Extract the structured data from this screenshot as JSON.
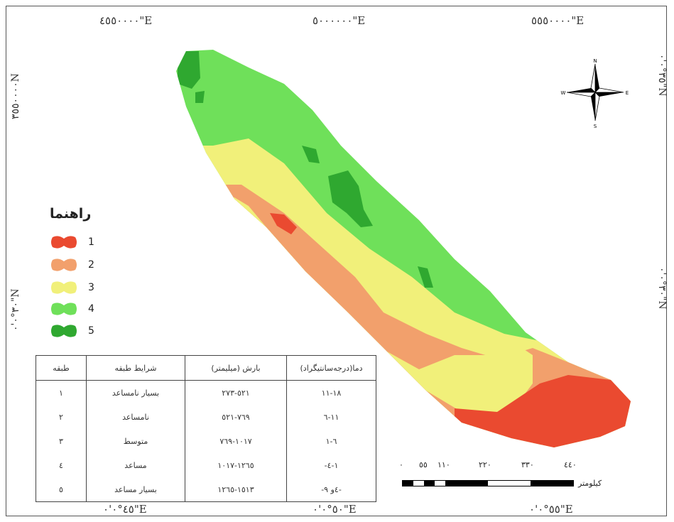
{
  "coords": {
    "top": [
      "٤٥٥٠٠٠٠\"E",
      "٥٠٠٠٠٠٠\"E",
      "٥٥٥٠٠٠٠\"E"
    ],
    "bottom": [
      "٤٥°٠'٠\"E",
      "٥٠°٠'٠\"E",
      "٥٥°٠'٠\"E"
    ],
    "left": [
      "٣٥٥٠٠٠٠N",
      "٣٠°٠'٠\"N"
    ],
    "right": [
      "٣٥°٠'٠\"N",
      "٣٠°٠'٠\"N"
    ]
  },
  "north_arrow": {
    "n": "N",
    "s": "S",
    "e": "E",
    "w": "W"
  },
  "legend": {
    "title": "راهنما",
    "items": [
      {
        "label": "1",
        "color": "#ea4a30"
      },
      {
        "label": "2",
        "color": "#f2a06c"
      },
      {
        "label": "3",
        "color": "#f1f07a"
      },
      {
        "label": "4",
        "color": "#6fe05a"
      },
      {
        "label": "5",
        "color": "#2fa830"
      }
    ]
  },
  "table": {
    "headers": [
      "طبقه",
      "شرایط طبقه",
      "بارش (میلیمتر)",
      "دما(درجه‌سانتیگراد)"
    ],
    "rows": [
      [
        "١",
        "بسیار نامساعد",
        "٥٢١-٢٧٣",
        "١٨-١١"
      ],
      [
        "٢",
        "نامساعد",
        "٧٦٩-٥٢١",
        "١١-٦"
      ],
      [
        "٣",
        "متوسط",
        "١٠١٧-٧٦٩",
        "٦-١"
      ],
      [
        "٤",
        "مساعد",
        "١٢٦٥-١٠١٧",
        "-١-٤"
      ],
      [
        "٥",
        "بسیار مساعد",
        "١٥١٣-١٢٦٥",
        "-٤و ٩-"
      ]
    ]
  },
  "scale": {
    "ticks": [
      "٠",
      "٥٥",
      "١١٠",
      "٢٢٠",
      "٣٣٠",
      "٤٤٠"
    ],
    "unit": "کیلومتر"
  }
}
